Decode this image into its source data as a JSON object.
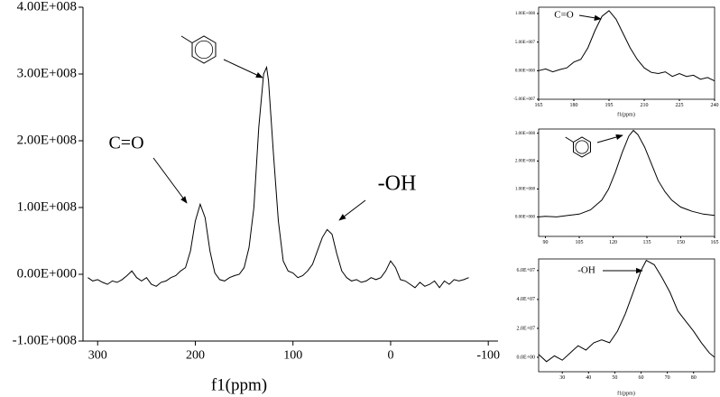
{
  "chart_data": [
    {
      "type": "line",
      "x_label": "f1(ppm)",
      "annotations": [
        "C=O",
        "-OH"
      ],
      "xlim": [
        315,
        -110
      ],
      "ylim": [
        -100000000.0,
        400000000.0
      ],
      "xticks": [
        300,
        200,
        100,
        0,
        -100
      ],
      "yticks": [
        {
          "value": -100000000.0,
          "label": "-1.00E+008"
        },
        {
          "value": 0,
          "label": "0.00E+000"
        },
        {
          "value": 100000000.0,
          "label": "1.00E+008"
        },
        {
          "value": 200000000.0,
          "label": "2.00E+008"
        },
        {
          "value": 300000000.0,
          "label": "3.00E+008"
        },
        {
          "value": 400000000.0,
          "label": "4.00E+008"
        }
      ],
      "color": "#000000",
      "x": [
        310,
        305,
        300,
        295,
        290,
        285,
        280,
        275,
        270,
        265,
        260,
        255,
        250,
        245,
        240,
        235,
        230,
        225,
        220,
        215,
        210,
        205,
        200,
        195,
        190,
        185,
        180,
        175,
        170,
        165,
        160,
        155,
        150,
        145,
        140,
        135,
        130,
        127,
        125,
        120,
        115,
        110,
        105,
        100,
        95,
        90,
        85,
        80,
        75,
        70,
        65,
        60,
        55,
        50,
        45,
        40,
        35,
        30,
        25,
        20,
        15,
        10,
        5,
        0,
        -5,
        -10,
        -15,
        -20,
        -25,
        -30,
        -35,
        -40,
        -45,
        -50,
        -55,
        -60,
        -65,
        -70,
        -75,
        -80
      ],
      "values": [
        -5000000.0,
        -10000000.0,
        -8000000.0,
        -12000000.0,
        -15000000.0,
        -10000000.0,
        -12000000.0,
        -8000000.0,
        -2000000.0,
        5000000.0,
        -5000000.0,
        -10000000.0,
        -5000000.0,
        -15000000.0,
        -18000000.0,
        -12000000.0,
        -10000000.0,
        -5000000.0,
        -2000000.0,
        5000000.0,
        10000000.0,
        35000000.0,
        80000000.0,
        105000000.0,
        85000000.0,
        35000000.0,
        2000000.0,
        -8000000.0,
        -10000000.0,
        -5000000.0,
        -2000000.0,
        0,
        10000000.0,
        40000000.0,
        100000000.0,
        220000000.0,
        300000000.0,
        310000000.0,
        290000000.0,
        180000000.0,
        80000000.0,
        20000000.0,
        5000000.0,
        2000000.0,
        -5000000.0,
        -2000000.0,
        5000000.0,
        15000000.0,
        35000000.0,
        55000000.0,
        67000000.0,
        60000000.0,
        30000000.0,
        5000000.0,
        -5000000.0,
        -10000000.0,
        -8000000.0,
        -12000000.0,
        -10000000.0,
        -5000000.0,
        -8000000.0,
        -5000000.0,
        5000000.0,
        20000000.0,
        10000000.0,
        -8000000.0,
        -10000000.0,
        -15000000.0,
        -20000000.0,
        -12000000.0,
        -18000000.0,
        -15000000.0,
        -10000000.0,
        -20000000.0,
        -10000000.0,
        -15000000.0,
        -8000000.0,
        -10000000.0,
        -8000000.0,
        -5000000.0
      ]
    },
    {
      "type": "line",
      "x_label": "f1(ppm)",
      "annotations": [
        "C=O"
      ],
      "xlim": [
        165,
        240
      ],
      "ylim": [
        -50000000.0,
        111000000.0
      ],
      "xticks": [
        165,
        180,
        195,
        210,
        225,
        240
      ],
      "yticks": [
        {
          "value": -50000000.0,
          "label": "-5.00E+007"
        },
        {
          "value": 0,
          "label": "0.00E+000"
        },
        {
          "value": 50000000.0,
          "label": "5.00E+007"
        },
        {
          "value": 100000000.0,
          "label": "1.00E+008"
        }
      ],
      "color": "#000000",
      "x": [
        165,
        168,
        171,
        174,
        177,
        180,
        183,
        186,
        189,
        192,
        195,
        198,
        201,
        204,
        207,
        210,
        213,
        216,
        219,
        222,
        225,
        228,
        231,
        234,
        237,
        240
      ],
      "values": [
        0,
        3000000.0,
        -2000000.0,
        2000000.0,
        5000000.0,
        15000000.0,
        20000000.0,
        40000000.0,
        70000000.0,
        95000000.0,
        105000000.0,
        90000000.0,
        65000000.0,
        40000000.0,
        20000000.0,
        5000000.0,
        -3000000.0,
        -5000000.0,
        -2000000.0,
        -10000000.0,
        -5000000.0,
        -10000000.0,
        -8000000.0,
        -15000000.0,
        -12000000.0,
        -18000000.0
      ]
    },
    {
      "type": "line",
      "annotations": [],
      "xlim": [
        87,
        165
      ],
      "ylim": [
        -70000000.0,
        315000000.0
      ],
      "xticks": [
        90,
        105,
        120,
        135,
        150,
        165
      ],
      "yticks": [
        {
          "value": 0,
          "label": "0.00E+000"
        },
        {
          "value": 100000000.0,
          "label": "1.00E+008"
        },
        {
          "value": 200000000.0,
          "label": "2.00E+008"
        },
        {
          "value": 300000000.0,
          "label": "3.00E+008"
        }
      ],
      "color": "#000000",
      "x": [
        87,
        90,
        95,
        100,
        105,
        110,
        115,
        118,
        121,
        124,
        127,
        129,
        131,
        134,
        137,
        140,
        143,
        146,
        150,
        155,
        160,
        165
      ],
      "values": [
        0,
        2000000.0,
        0,
        5000000.0,
        10000000.0,
        25000000.0,
        60000000.0,
        100000000.0,
        160000000.0,
        230000000.0,
        290000000.0,
        310000000.0,
        295000000.0,
        250000000.0,
        190000000.0,
        130000000.0,
        90000000.0,
        60000000.0,
        35000000.0,
        20000000.0,
        10000000.0,
        5000000.0
      ]
    },
    {
      "type": "line",
      "x_label": "f1(ppm)",
      "annotations": [
        "-OH"
      ],
      "xlim": [
        21,
        88
      ],
      "ylim": [
        -10000000.0,
        68000000.0
      ],
      "xticks": [
        30,
        40,
        50,
        60,
        70,
        80
      ],
      "yticks": [
        {
          "value": 0,
          "label": "0.0E+00"
        },
        {
          "value": 20000000.0,
          "label": "2.0E+07"
        },
        {
          "value": 40000000.0,
          "label": "4.0E+07"
        },
        {
          "value": 60000000.0,
          "label": "6.0E+07"
        }
      ],
      "color": "#000000",
      "x": [
        21,
        24,
        27,
        30,
        33,
        36,
        39,
        42,
        45,
        48,
        51,
        54,
        57,
        60,
        62,
        65,
        68,
        71,
        74,
        77,
        80,
        83,
        86,
        88
      ],
      "values": [
        2000000.0,
        -3000000.0,
        1000000.0,
        -2000000.0,
        3000000.0,
        8000000.0,
        5000000.0,
        10000000.0,
        12000000.0,
        10000000.0,
        18000000.0,
        30000000.0,
        45000000.0,
        60000000.0,
        67000000.0,
        64000000.0,
        55000000.0,
        45000000.0,
        32000000.0,
        25000000.0,
        18000000.0,
        10000000.0,
        3000000.0,
        0
      ]
    }
  ]
}
